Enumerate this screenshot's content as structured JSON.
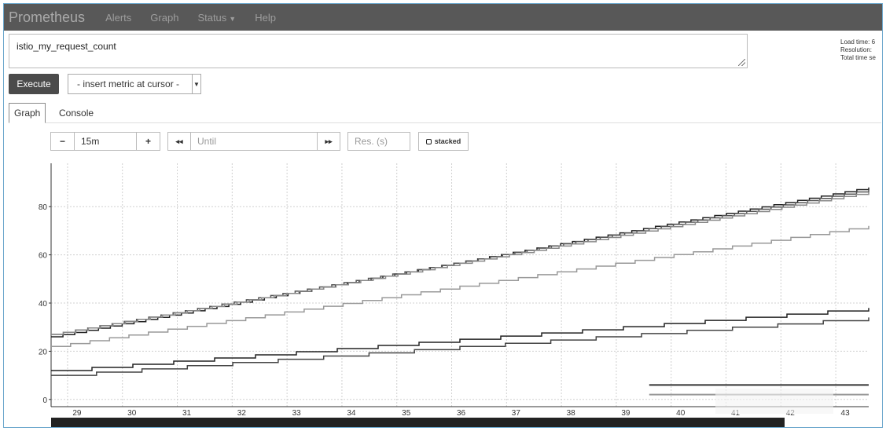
{
  "nav": {
    "brand": "Prometheus",
    "alerts": "Alerts",
    "graph": "Graph",
    "status": "Status",
    "help": "Help"
  },
  "query": {
    "expression": "istio_my_request_count"
  },
  "stats": {
    "load_time": "Load time: 6",
    "resolution": "Resolution:",
    "total_time": "Total time se"
  },
  "toolbar": {
    "execute": "Execute",
    "insert_metric": "- insert metric at cursor -"
  },
  "tabs": {
    "graph": "Graph",
    "console": "Console"
  },
  "controls": {
    "minus": "−",
    "range": "15m",
    "plus": "+",
    "back": "◂◂",
    "until_placeholder": "Until",
    "forward": "▸▸",
    "res_placeholder": "Res. (s)",
    "stacked": "stacked"
  },
  "colors": {
    "navbar": "#585858",
    "series_dark": "#222222",
    "series_gray": "#999999",
    "grid": "#d0d0d0"
  },
  "chart_data": {
    "type": "line",
    "x_ticks": [
      "29",
      "30",
      "31",
      "32",
      "33",
      "34",
      "35",
      "36",
      "37",
      "38",
      "39",
      "40",
      "41",
      "42",
      "43"
    ],
    "y_ticks": [
      "0",
      "20",
      "40",
      "60",
      "80"
    ],
    "xlim": [
      28.7,
      43.6
    ],
    "ylim": [
      -3,
      98
    ],
    "grid": true,
    "legend": "bottom-right",
    "series": [
      {
        "color": "#222222",
        "x": [
          28.7,
          43.6
        ],
        "y": [
          26,
          88
        ],
        "step": 0.9
      },
      {
        "color": "#555555",
        "x": [
          28.7,
          43.6
        ],
        "y": [
          27,
          87
        ],
        "step": 0.9
      },
      {
        "color": "#888888",
        "x": [
          28.7,
          43.6
        ],
        "y": [
          27,
          86
        ],
        "step": 0.9
      },
      {
        "color": "#999999",
        "x": [
          28.7,
          43.6
        ],
        "y": [
          22,
          72
        ],
        "step": 1.2
      },
      {
        "color": "#222222",
        "x": [
          28.7,
          43.6
        ],
        "y": [
          12,
          38
        ],
        "step": 1.3
      },
      {
        "color": "#444444",
        "x": [
          28.7,
          43.6
        ],
        "y": [
          10,
          34
        ],
        "step": 1.3
      }
    ],
    "legend_lines": [
      {
        "color": "#333333",
        "y": 6
      },
      {
        "color": "#999999",
        "y": 2
      }
    ]
  }
}
